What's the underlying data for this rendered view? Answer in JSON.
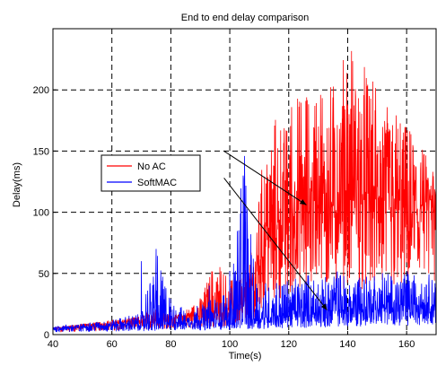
{
  "chart_data": {
    "type": "line",
    "title": "End to end delay comparison",
    "xlabel": "Time(s)",
    "ylabel": "Delay(ms)",
    "xlim": [
      40,
      170
    ],
    "ylim": [
      0,
      250
    ],
    "xticks": [
      40,
      60,
      80,
      100,
      120,
      140,
      160
    ],
    "yticks": [
      0,
      50,
      100,
      150,
      200
    ],
    "grid": true,
    "legend": "center-left",
    "annotations": [
      {
        "text_ref": "No AC",
        "from": [
          123,
          150
        ],
        "to": [
          126,
          106
        ]
      },
      {
        "text_ref": "SoftMAC",
        "from": [
          123,
          128
        ],
        "to": [
          133,
          20
        ]
      }
    ],
    "series": [
      {
        "name": "No AC",
        "color": "#ff0000",
        "x": [
          40,
          50,
          60,
          70,
          75,
          80,
          85,
          90,
          95,
          100,
          105,
          108,
          110,
          112,
          115,
          118,
          120,
          123,
          126,
          128,
          130,
          133,
          136,
          138,
          139,
          140,
          142,
          144,
          146,
          148,
          150,
          152,
          154,
          156,
          158,
          160,
          162,
          164,
          166,
          168,
          170
        ],
        "base": [
          5,
          7,
          9,
          11,
          12,
          13,
          14,
          15,
          17,
          20,
          25,
          35,
          55,
          75,
          82,
          86,
          90,
          92,
          95,
          98,
          100,
          102,
          104,
          105,
          106,
          106,
          105,
          104,
          103,
          102,
          100,
          99,
          98,
          98,
          97,
          96,
          95,
          96,
          97,
          98,
          100
        ],
        "peak": [
          6,
          9,
          12,
          15,
          25,
          15,
          20,
          30,
          62,
          45,
          55,
          75,
          130,
          150,
          180,
          170,
          190,
          195,
          200,
          195,
          210,
          205,
          215,
          220,
          250,
          245,
          230,
          225,
          220,
          210,
          200,
          195,
          190,
          185,
          175,
          170,
          165,
          160,
          150,
          140,
          130
        ]
      },
      {
        "name": "SoftMAC",
        "color": "#0000ff",
        "x": [
          40,
          50,
          60,
          70,
          75,
          80,
          85,
          90,
          95,
          100,
          105,
          108,
          110,
          112,
          115,
          118,
          120,
          123,
          126,
          128,
          130,
          133,
          136,
          138,
          139,
          140,
          142,
          144,
          146,
          148,
          150,
          152,
          154,
          156,
          158,
          160,
          162,
          164,
          166,
          168,
          170
        ],
        "base": [
          5,
          6,
          7,
          8,
          8,
          9,
          9,
          10,
          10,
          11,
          12,
          12,
          13,
          13,
          14,
          14,
          15,
          15,
          16,
          16,
          17,
          17,
          18,
          18,
          18,
          18,
          18,
          19,
          19,
          19,
          20,
          20,
          20,
          21,
          21,
          21,
          22,
          22,
          22,
          22,
          22
        ],
        "peak": [
          7,
          9,
          12,
          18,
          68,
          30,
          20,
          25,
          30,
          35,
          150,
          55,
          50,
          45,
          42,
          45,
          48,
          45,
          50,
          48,
          45,
          48,
          55,
          50,
          52,
          50,
          48,
          50,
          52,
          50,
          48,
          52,
          50,
          48,
          52,
          55,
          50,
          52,
          55,
          52,
          50
        ],
        "spikes": [
          {
            "x": 70,
            "y": 60
          },
          {
            "x": 75,
            "y": 70
          },
          {
            "x": 93,
            "y": 40
          },
          {
            "x": 100,
            "y": 52
          },
          {
            "x": 105,
            "y": 146
          },
          {
            "x": 108,
            "y": 62
          }
        ]
      }
    ]
  }
}
